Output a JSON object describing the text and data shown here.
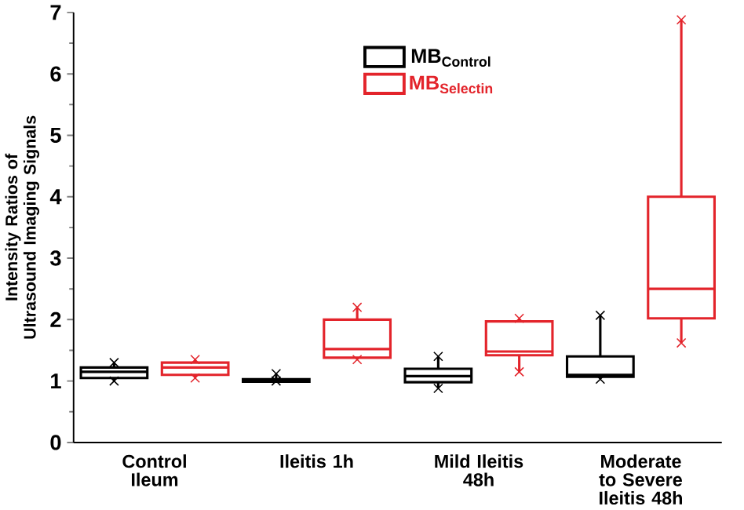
{
  "chart_data": {
    "type": "box",
    "ylabel": "Intensity Ratios of Ultrasound Imaging Signals",
    "categories": [
      "Control Ileum",
      "Ileitis 1h",
      "Mild Ileitis 48h",
      "Moderate to Severe Ileitis 48h"
    ],
    "ylim": [
      0,
      7
    ],
    "yticks": [
      0,
      1,
      2,
      3,
      4,
      5,
      6,
      7
    ],
    "grid": false,
    "legend": "top",
    "marker": "cross",
    "series": [
      {
        "name": "MB$_{Control}$",
        "color": "#000000",
        "boxes": [
          {
            "low": 1.0,
            "q1": 1.05,
            "median": 1.15,
            "q3": 1.22,
            "high": 1.3,
            "outliers": [
              1.0,
              1.3
            ]
          },
          {
            "low": 1.0,
            "q1": 0.99,
            "median": 1.01,
            "q3": 1.03,
            "high": 1.12,
            "outliers": [
              1.0,
              1.12
            ]
          },
          {
            "low": 0.88,
            "q1": 0.98,
            "median": 1.08,
            "q3": 1.2,
            "high": 1.4,
            "outliers": [
              0.88,
              1.4
            ]
          },
          {
            "low": 1.03,
            "q1": 1.07,
            "median": 1.1,
            "q3": 1.4,
            "high": 2.07,
            "outliers": [
              1.03,
              2.07
            ]
          }
        ]
      },
      {
        "name": "MB$_{Selectin}$",
        "color": "#e3242b",
        "boxes": [
          {
            "low": 1.05,
            "q1": 1.1,
            "median": 1.22,
            "q3": 1.3,
            "high": 1.35,
            "outliers": [
              1.05,
              1.35
            ]
          },
          {
            "low": 1.35,
            "q1": 1.38,
            "median": 1.52,
            "q3": 2.0,
            "high": 2.2,
            "outliers": [
              1.35,
              2.2
            ]
          },
          {
            "low": 1.15,
            "q1": 1.42,
            "median": 1.48,
            "q3": 1.97,
            "high": 2.02,
            "outliers": [
              1.15,
              2.02
            ]
          },
          {
            "low": 1.62,
            "q1": 2.02,
            "median": 2.5,
            "q3": 4.0,
            "high": 6.88,
            "outliers": [
              1.62,
              6.88
            ]
          }
        ]
      }
    ]
  }
}
